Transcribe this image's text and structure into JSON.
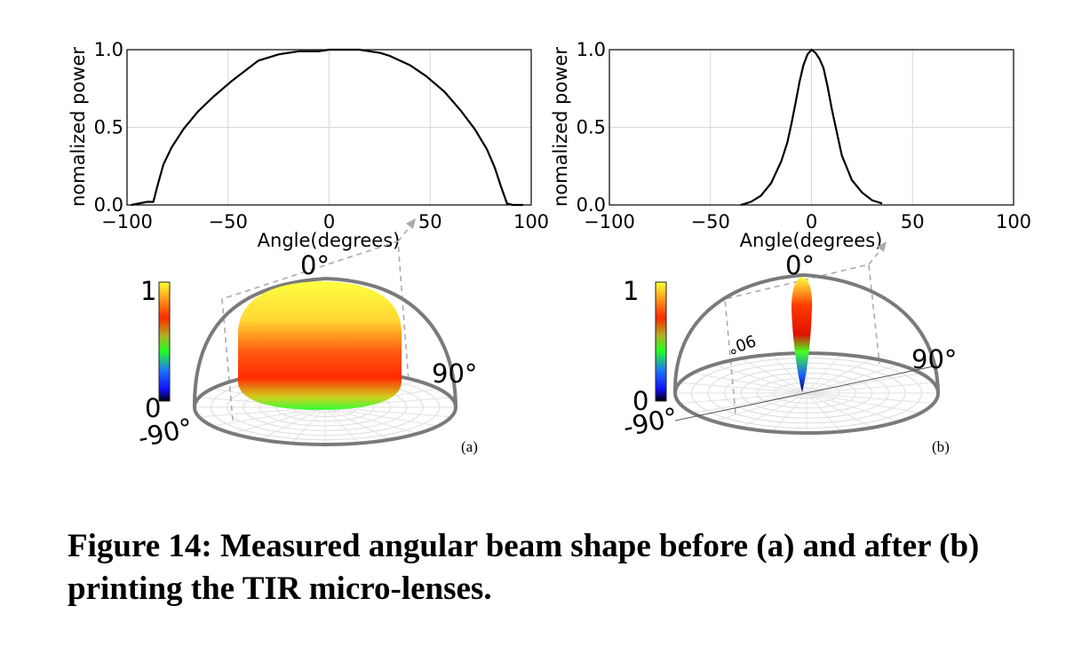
{
  "chart_data": [
    {
      "type": "line",
      "xlabel": "Angle(degrees)",
      "ylabel": "nomalized power",
      "xlim": [
        -100,
        100
      ],
      "ylim": [
        0,
        1
      ],
      "xticks": [
        "−100",
        "−50",
        "0",
        "50",
        "100"
      ],
      "yticks": [
        "0.0",
        "0.5",
        "1.0"
      ],
      "grid": true,
      "series": [
        {
          "x": [
            -98,
            -90,
            -87,
            -85,
            -82,
            -78,
            -72,
            -65,
            -57,
            -48,
            -40,
            -35,
            -30,
            -25,
            -20,
            -15,
            -10,
            -5,
            0,
            5,
            10,
            15,
            20,
            25,
            30,
            35,
            40,
            48,
            57,
            65,
            72,
            78,
            82,
            85,
            88,
            91,
            96
          ],
          "y": [
            0.0,
            0.02,
            0.02,
            0.12,
            0.26,
            0.37,
            0.49,
            0.6,
            0.7,
            0.8,
            0.88,
            0.93,
            0.95,
            0.97,
            0.98,
            0.99,
            0.99,
            0.99,
            1.0,
            1.0,
            1.0,
            1.0,
            0.99,
            0.98,
            0.96,
            0.93,
            0.9,
            0.83,
            0.73,
            0.61,
            0.49,
            0.36,
            0.24,
            0.12,
            0.01,
            0.0,
            0.0
          ]
        }
      ]
    },
    {
      "type": "line",
      "xlabel": "Angle(degrees)",
      "ylabel": "nomalized power",
      "xlim": [
        -100,
        100
      ],
      "ylim": [
        0,
        1
      ],
      "xticks": [
        "−100",
        "−50",
        "0",
        "50",
        "100"
      ],
      "yticks": [
        "0.0",
        "0.5",
        "1.0"
      ],
      "grid": true,
      "series": [
        {
          "x": [
            -35,
            -30,
            -25,
            -20,
            -15,
            -12,
            -10,
            -8,
            -6,
            -4,
            -2,
            0,
            2,
            4,
            6,
            8,
            10,
            12,
            15,
            20,
            25,
            30,
            35
          ],
          "y": [
            0.0,
            0.02,
            0.06,
            0.14,
            0.28,
            0.4,
            0.52,
            0.65,
            0.79,
            0.9,
            0.97,
            1.0,
            0.98,
            0.94,
            0.88,
            0.76,
            0.62,
            0.5,
            0.32,
            0.16,
            0.08,
            0.03,
            0.01
          ]
        }
      ]
    }
  ],
  "polar": [
    {
      "cbar_top": "1",
      "cbar_bottom": "0",
      "label_top": "0°",
      "label_right": "90°",
      "label_left": "-90°",
      "panel": "(a)"
    },
    {
      "cbar_top": "1",
      "cbar_bottom": "0",
      "label_top": "0°",
      "label_right": "90°",
      "label_left": "-90°",
      "label_inner": "90°",
      "panel": "(b)"
    }
  ],
  "caption": "Figure 14: Measured angular beam shape before (a) and after (b) printing the TIR micro-lenses."
}
